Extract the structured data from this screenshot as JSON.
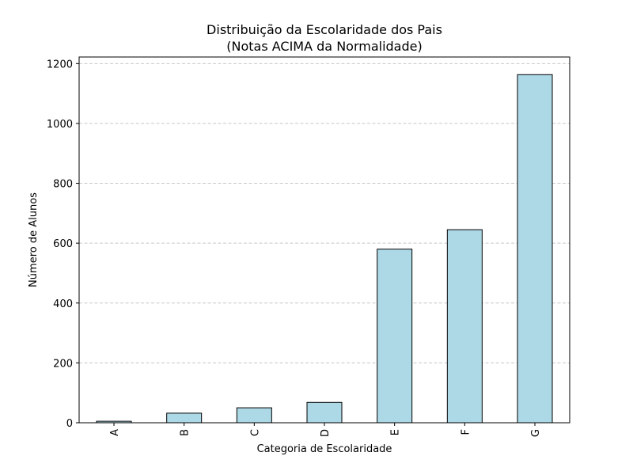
{
  "chart_data": {
    "type": "bar",
    "title": "Distribuição da Escolaridade dos Pais",
    "subtitle": "(Notas ACIMA da Normalidade)",
    "xlabel": "Categoria de Escolaridade",
    "ylabel": "Número de Alunos",
    "categories": [
      "A",
      "B",
      "C",
      "D",
      "E",
      "F",
      "G"
    ],
    "values": [
      5,
      32,
      50,
      68,
      580,
      645,
      1163
    ],
    "ylim": [
      0,
      1222
    ],
    "yticks": [
      0,
      200,
      400,
      600,
      800,
      1000,
      1200
    ],
    "ytick_labels": [
      "0",
      "200",
      "400",
      "600",
      "800",
      "1000",
      "1200"
    ],
    "grid": "y-dashed",
    "bar_color": "#add8e6",
    "edge_color": "#000000",
    "grid_color": "#c8c8c8",
    "x_tick_rotation": "vertical"
  }
}
